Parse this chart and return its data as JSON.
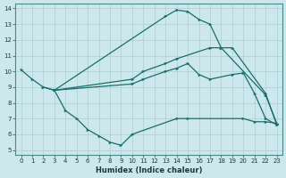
{
  "xlabel": "Humidex (Indice chaleur)",
  "background_color": "#cce8ec",
  "grid_color": "#aacdd4",
  "line_color": "#1a6e6a",
  "xlim": [
    -0.5,
    23.5
  ],
  "ylim": [
    4.7,
    14.3
  ],
  "xticks": [
    0,
    1,
    2,
    3,
    4,
    5,
    6,
    7,
    8,
    9,
    10,
    11,
    12,
    13,
    14,
    15,
    16,
    17,
    18,
    19,
    20,
    21,
    22,
    23
  ],
  "yticks": [
    5,
    6,
    7,
    8,
    9,
    10,
    11,
    12,
    13,
    14
  ],
  "line1_x": [
    0,
    1,
    2,
    3,
    13,
    14,
    15,
    16,
    17,
    18,
    22,
    23
  ],
  "line1_y": [
    10.1,
    9.5,
    9.0,
    8.8,
    13.5,
    13.9,
    13.8,
    13.3,
    13.0,
    11.5,
    8.5,
    6.7
  ],
  "line2_x": [
    2,
    3,
    4,
    5,
    6,
    7,
    8,
    9,
    10,
    14,
    15,
    20,
    21,
    22,
    23
  ],
  "line2_y": [
    9.0,
    8.8,
    7.5,
    7.0,
    6.3,
    5.9,
    5.5,
    5.3,
    6.0,
    7.0,
    7.0,
    7.0,
    6.8,
    6.8,
    6.7
  ],
  "line3_x": [
    3,
    10,
    11,
    13,
    14,
    15,
    16,
    17,
    19,
    20,
    21,
    22,
    23
  ],
  "line3_y": [
    8.8,
    9.2,
    9.5,
    10.0,
    10.2,
    10.5,
    9.8,
    9.5,
    9.8,
    9.9,
    8.6,
    7.0,
    6.6
  ],
  "line4_x": [
    3,
    10,
    11,
    13,
    14,
    17,
    18,
    19,
    22,
    23
  ],
  "line4_y": [
    8.8,
    9.5,
    10.0,
    10.5,
    10.8,
    11.5,
    11.5,
    11.5,
    8.6,
    6.6
  ]
}
